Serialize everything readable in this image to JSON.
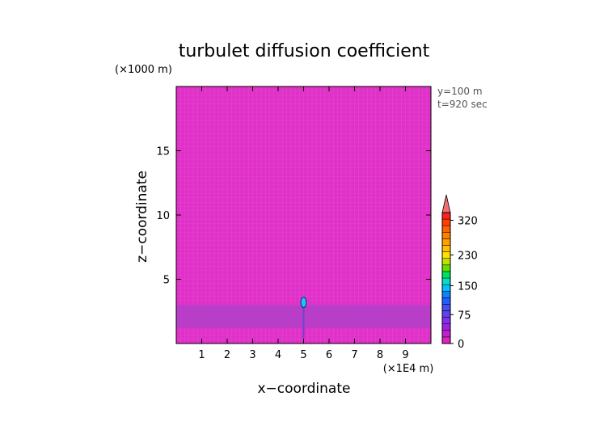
{
  "chart_data": {
    "type": "heatmap",
    "title": "turbulet diffusion coefficient",
    "xlabel": "x−coordinate",
    "ylabel": "z−coordinate",
    "x_unit": "(×1E4 m)",
    "z_unit": "(×1000 m)",
    "xlim": [
      0,
      10
    ],
    "zlim": [
      0,
      20
    ],
    "x_ticks": [
      "1",
      "2",
      "3",
      "4",
      "5",
      "6",
      "7",
      "8",
      "9"
    ],
    "z_ticks": [
      "5",
      "10",
      "15"
    ],
    "annotations": [
      "y=100 m",
      "t=920 sec"
    ],
    "background_value": 0,
    "features": [
      {
        "name": "mixing-layer",
        "x_range": [
          0,
          10
        ],
        "z_range": [
          1.2,
          3.0
        ],
        "value": 20
      },
      {
        "name": "plume-core",
        "x_center": 5.0,
        "z_range": [
          2.8,
          3.6
        ],
        "value": 150
      }
    ],
    "colorbar": {
      "labels": [
        "0",
        "75",
        "150",
        "230",
        "320"
      ],
      "label_values": [
        0,
        75,
        150,
        230,
        320
      ],
      "max": 340,
      "colors": [
        "#e020c0",
        "#c020d0",
        "#a020e0",
        "#8030e8",
        "#6040f0",
        "#4050f8",
        "#2060ff",
        "#1080ff",
        "#00c0ff",
        "#00e0c0",
        "#00e060",
        "#60e000",
        "#c0e000",
        "#ffe000",
        "#ffc000",
        "#ffa000",
        "#ff8000",
        "#ff6000",
        "#ff4000",
        "#ff2020"
      ],
      "extend_color": "#f07070"
    },
    "colors": {
      "field": "#e030c8",
      "grid": "#e860d8",
      "band": "#b040c8"
    }
  }
}
